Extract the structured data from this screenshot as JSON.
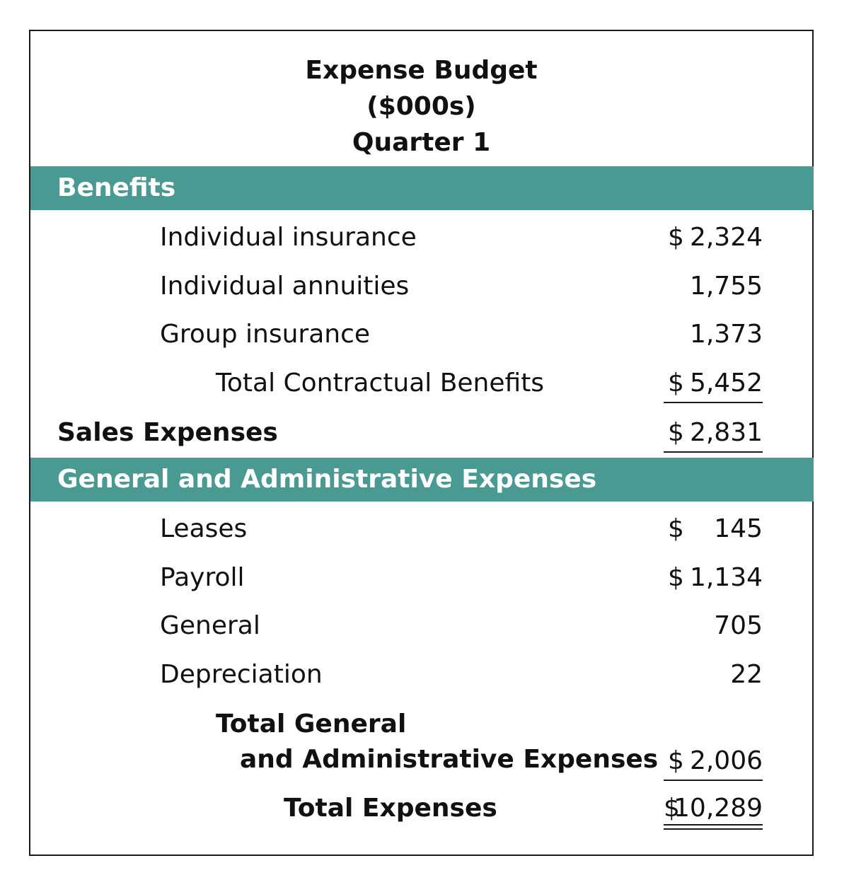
{
  "title": {
    "line1": "Expense Budget",
    "line2": "($000s)",
    "line3": "Quarter 1"
  },
  "benefits": {
    "header": "Benefits",
    "items": [
      {
        "label": "Individual insurance",
        "currency": "$",
        "amount": "2,324"
      },
      {
        "label": "Individual annuities",
        "currency": "",
        "amount": "1,755"
      },
      {
        "label": "Group insurance",
        "currency": "",
        "amount": "1,373"
      }
    ],
    "total": {
      "label": "Total Contractual Benefits",
      "currency": "$",
      "amount": "5,452"
    }
  },
  "sales": {
    "label": "Sales Expenses",
    "currency": "$",
    "amount": "2,831"
  },
  "ga": {
    "header": "General and Administrative Expenses",
    "items": [
      {
        "label": "Leases",
        "currency": "$",
        "amount": "145"
      },
      {
        "label": "Payroll",
        "currency": "$",
        "amount": "1,134"
      },
      {
        "label": "General",
        "currency": "",
        "amount": "705"
      },
      {
        "label": "Depreciation",
        "currency": "",
        "amount": "22"
      }
    ],
    "total": {
      "label_line1": "Total General",
      "label_line2": "and Administrative Expenses",
      "currency": "$",
      "amount": "2,006"
    }
  },
  "grand_total": {
    "label": "Total Expenses",
    "currency": "$",
    "amount": "10,289"
  }
}
